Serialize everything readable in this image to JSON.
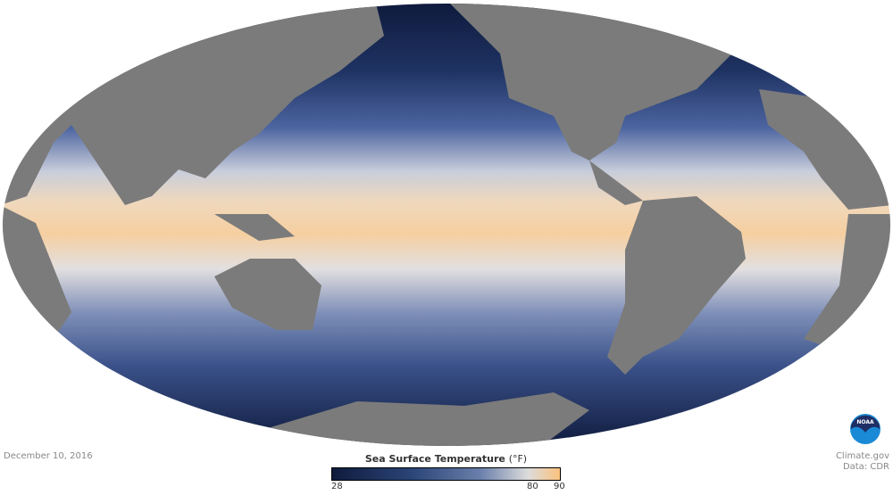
{
  "date": "December 10, 2016",
  "credit": {
    "line1": "Climate.gov",
    "line2": "Data: CDR"
  },
  "logo": {
    "text": "NOAA"
  },
  "legend": {
    "title": "Sea Surface Temperature",
    "unit": "(°F)",
    "min": 28,
    "max": 90,
    "ticks": [
      "28",
      "80",
      "90"
    ],
    "colors": [
      "#0f1b3d",
      "#2b4577",
      "#6a7fab",
      "#dcdcdc",
      "#fbc27e"
    ]
  },
  "map": {
    "projection": "Mollweide",
    "land_color": "#7b7b7b"
  }
}
